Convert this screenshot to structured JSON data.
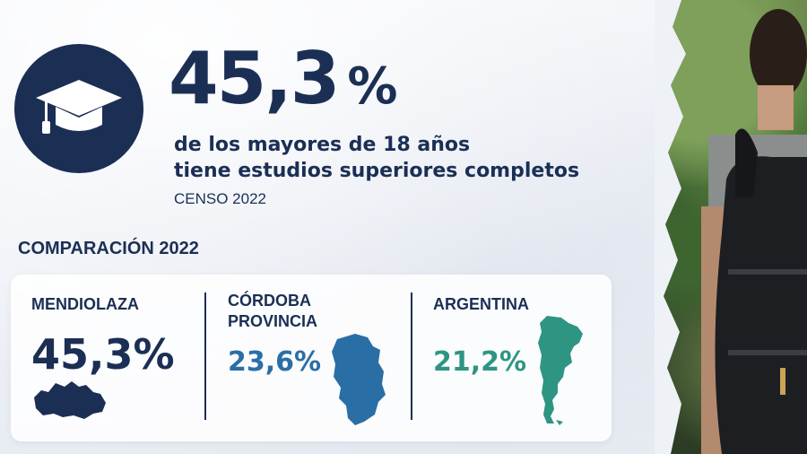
{
  "headline": {
    "value": "45,3",
    "percent_sign": "%",
    "line1": "de los mayores de 18 años",
    "line2": "tiene estudios superiores completos",
    "source": "CENSO 2022"
  },
  "icon": "graduation-cap-icon",
  "comparison": {
    "title": "COMPARACIÓN 2022",
    "items": [
      {
        "label": "MENDIOLAZA",
        "value": "45,3%",
        "color": "#1b2f55",
        "map_icon": "mendiolaza-map-icon"
      },
      {
        "label_line1": "CÓRDOBA",
        "label_line2": "PROVINCIA",
        "value": "23,6%",
        "color": "#2a6ea6",
        "map_icon": "cordoba-map-icon"
      },
      {
        "label": "ARGENTINA",
        "value": "21,2%",
        "color": "#2e9583",
        "map_icon": "argentina-map-icon"
      }
    ]
  },
  "colors": {
    "navy": "#1b2f55",
    "blue": "#2a6ea6",
    "teal": "#2e9583"
  }
}
